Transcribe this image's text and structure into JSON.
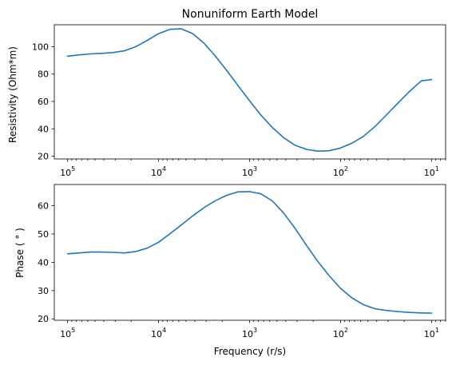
{
  "chart_data": [
    {
      "type": "line",
      "title": "Nonuniform Earth Model",
      "xlabel": "",
      "ylabel": "Resistivity (Ohm*m)",
      "xscale": "log",
      "x_inverted": true,
      "xlim": [
        140000,
        7
      ],
      "ylim": [
        18,
        116
      ],
      "x_tick_labels": [
        {
          "base": "10",
          "exp": "5"
        },
        {
          "base": "10",
          "exp": "4"
        },
        {
          "base": "10",
          "exp": "3"
        },
        {
          "base": "10",
          "exp": "2"
        },
        {
          "base": "10",
          "exp": "1"
        }
      ],
      "yticks": [
        20,
        40,
        60,
        80,
        100
      ],
      "grid": false,
      "color": "#1f77b4",
      "series": [
        {
          "x": [
            100000,
            74989,
            56234,
            42170,
            31623,
            23714,
            17783,
            13335,
            10000,
            7499,
            5623,
            4217,
            3162,
            2371,
            1778,
            1334,
            1000,
            750,
            562,
            422,
            316,
            237,
            178,
            133,
            100,
            75,
            56,
            42,
            32,
            24,
            18,
            13,
            10
          ],
          "y": [
            93,
            94,
            94.7,
            95.1,
            95.7,
            97,
            100,
            104.5,
            109.5,
            112.7,
            113,
            109.5,
            102.5,
            93,
            82.5,
            71.5,
            60.5,
            50,
            41,
            33.5,
            28,
            25,
            23.7,
            24,
            26,
            29.5,
            34.5,
            41.5,
            49.5,
            58,
            66.5,
            75,
            76
          ]
        }
      ]
    },
    {
      "type": "line",
      "title": "",
      "xlabel": "Frequency (r/s)",
      "ylabel": "Phase ( ° )",
      "xscale": "log",
      "x_inverted": true,
      "xlim": [
        140000,
        7
      ],
      "ylim": [
        19.5,
        67.5
      ],
      "x_tick_labels": [
        {
          "base": "10",
          "exp": "5"
        },
        {
          "base": "10",
          "exp": "4"
        },
        {
          "base": "10",
          "exp": "3"
        },
        {
          "base": "10",
          "exp": "2"
        },
        {
          "base": "10",
          "exp": "1"
        }
      ],
      "yticks": [
        20,
        30,
        40,
        50,
        60
      ],
      "grid": false,
      "color": "#1f77b4",
      "series": [
        {
          "x": [
            100000,
            74989,
            56234,
            42170,
            31623,
            23714,
            17783,
            13335,
            10000,
            7499,
            5623,
            4217,
            3162,
            2371,
            1778,
            1334,
            1000,
            750,
            562,
            422,
            316,
            237,
            178,
            133,
            100,
            75,
            56,
            42,
            32,
            24,
            18,
            13,
            10
          ],
          "y": [
            43,
            43.3,
            43.6,
            43.6,
            43.5,
            43.3,
            43.8,
            45,
            47.1,
            50.1,
            53.2,
            56.4,
            59.3,
            61.8,
            63.7,
            64.9,
            65,
            64.2,
            61.7,
            57.4,
            52,
            46,
            40.3,
            35.2,
            30.8,
            27.4,
            25,
            23.6,
            23,
            22.6,
            22.3,
            22.1,
            22
          ]
        }
      ]
    }
  ]
}
